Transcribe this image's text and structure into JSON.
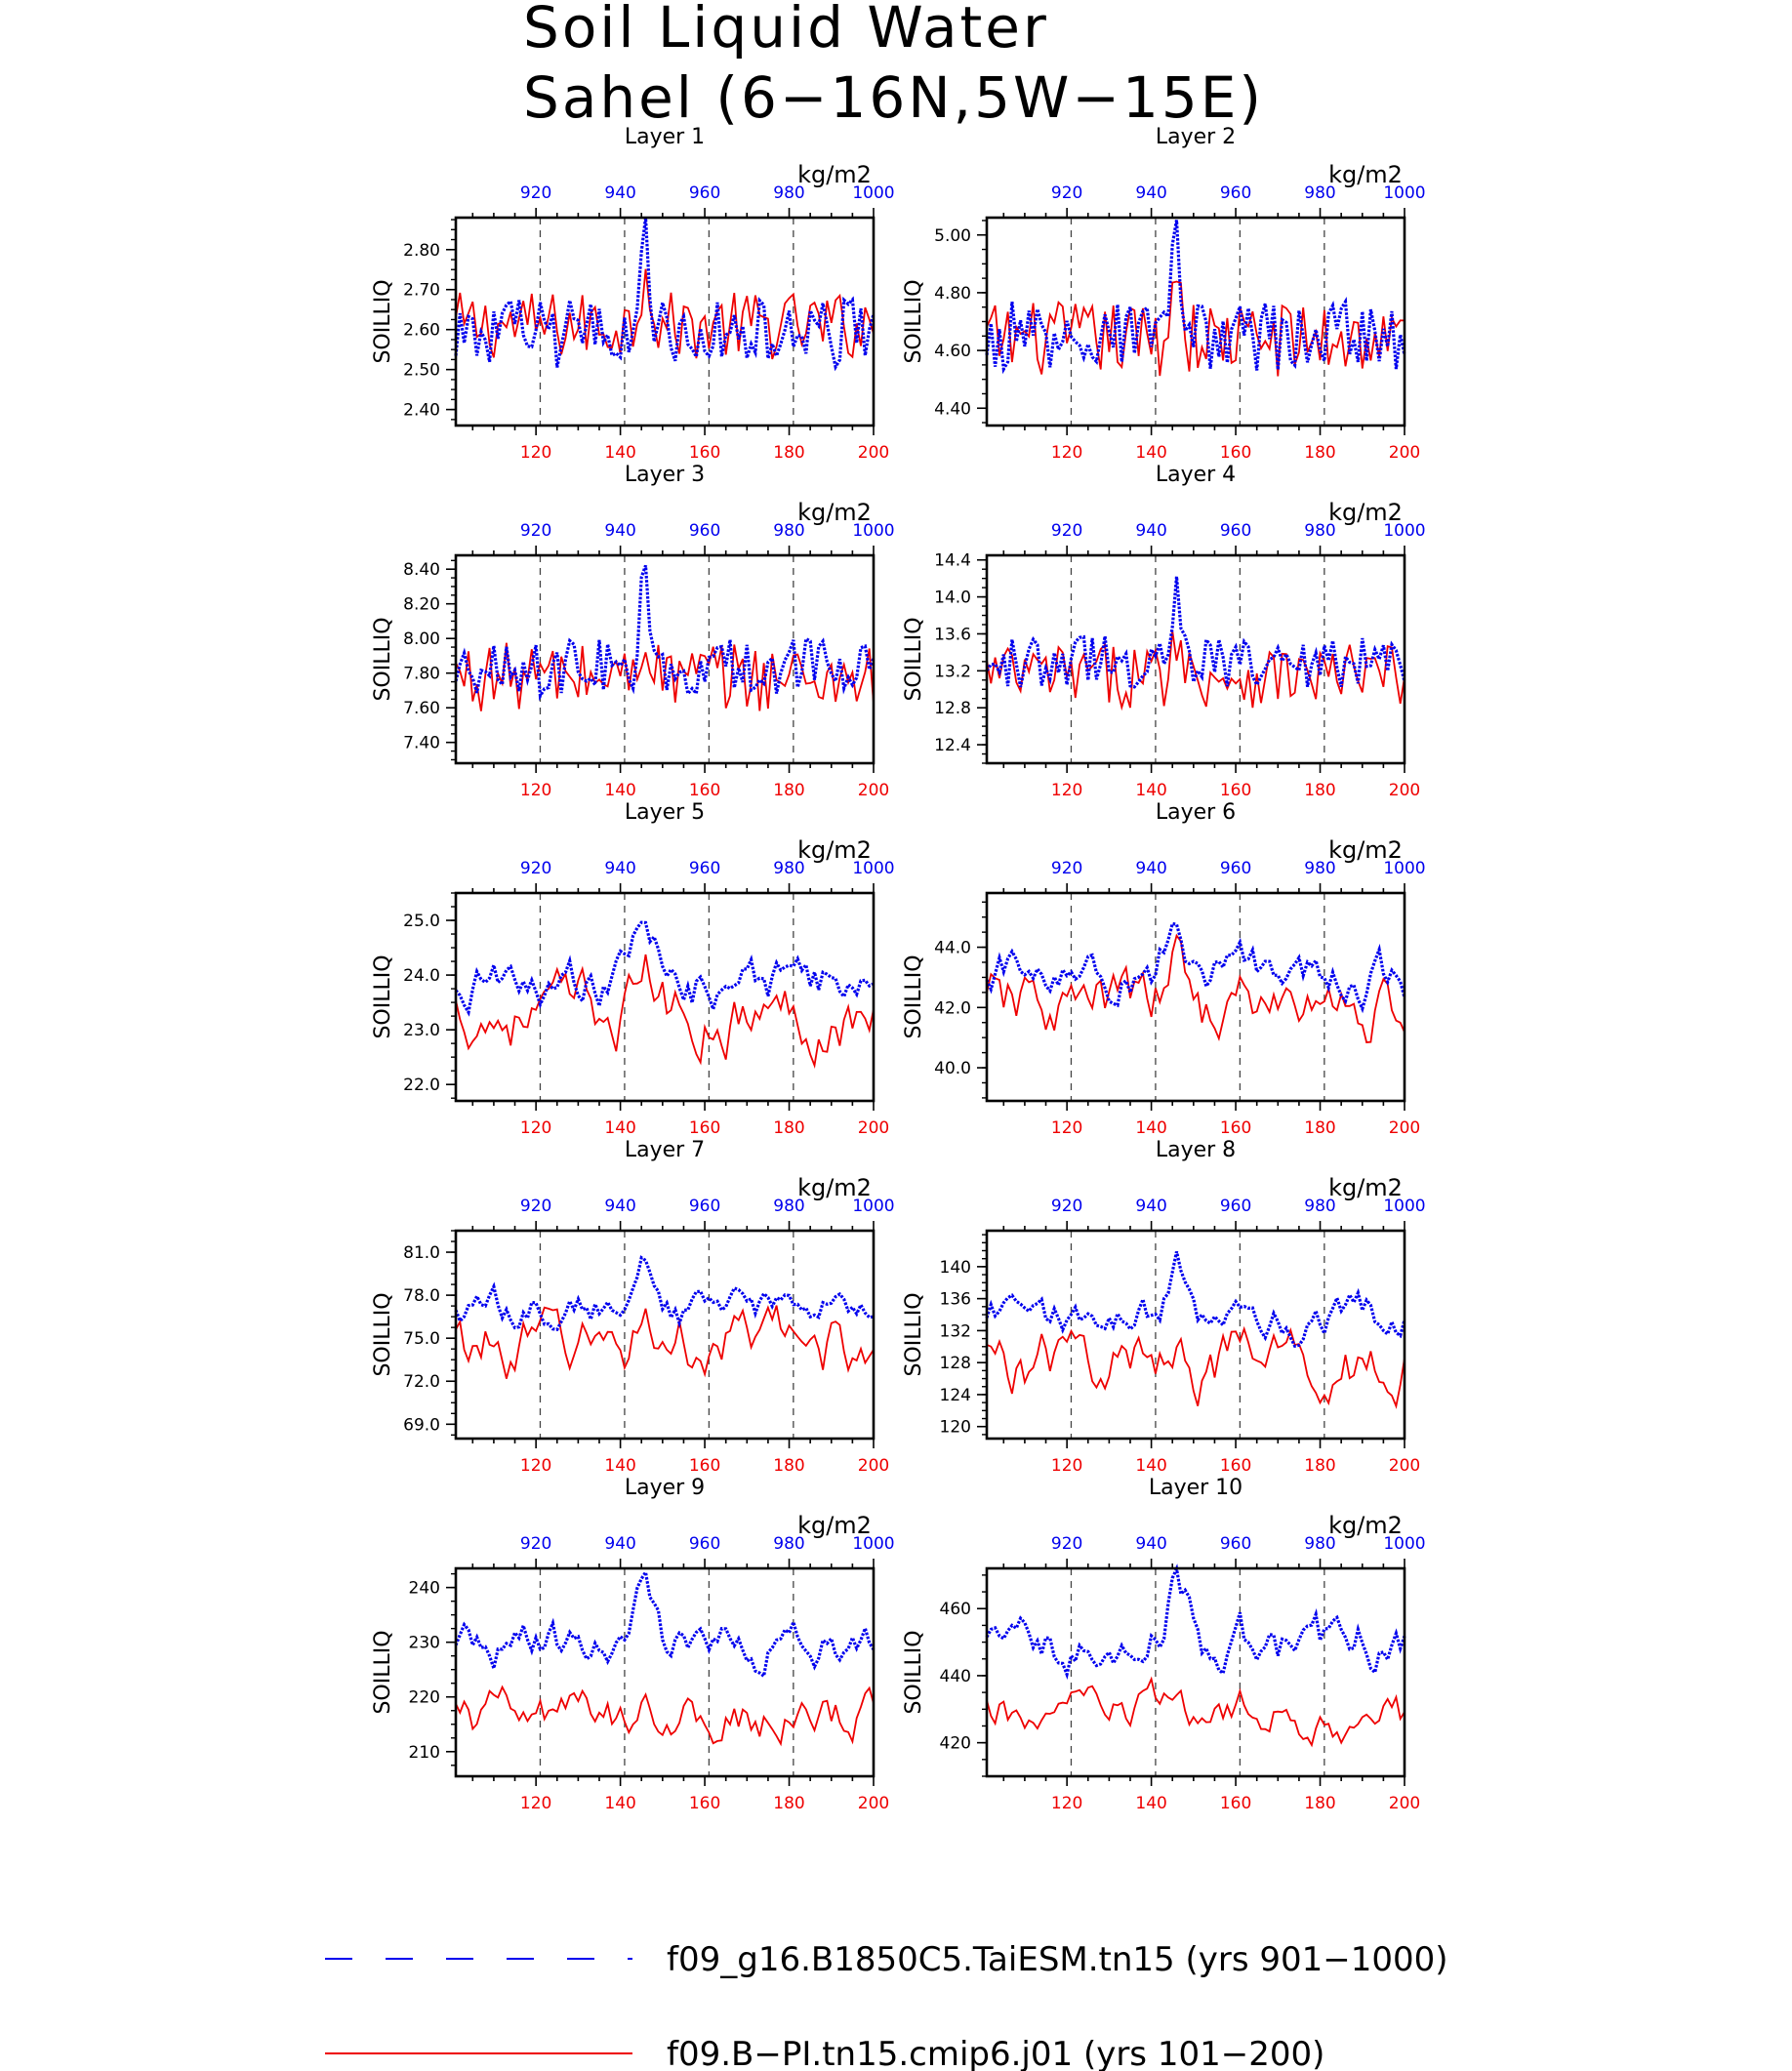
{
  "title": {
    "line1": "Soil Liquid Water",
    "line2": "Sahel (6−16N,5W−15E)"
  },
  "colors": {
    "exp": "#0000ee",
    "ctl": "#ee0000",
    "axis": "#000000"
  },
  "panel_common": {
    "ylabel": "SOILLIQ",
    "units": "kg/m2",
    "bottom_ticks": [
      "120",
      "140",
      "160",
      "180",
      "200"
    ],
    "top_ticks": [
      "920",
      "940",
      "960",
      "980",
      "1000"
    ]
  },
  "legend": [
    {
      "name": "f09_g16.B1850C5.TaiESM.tn15 (yrs 901−1000)",
      "color": "#0000ee",
      "style": "dashed"
    },
    {
      "name": "f09.B−PI.tn15.cmip6.j01 (yrs 101−200)",
      "color": "#ee0000",
      "style": "solid"
    }
  ],
  "chart_data": [
    {
      "type": "line",
      "title": "Layer 1",
      "ylabel": "SOILLIQ",
      "units": "kg/m2",
      "x_bottom": [
        101,
        200
      ],
      "x_top": [
        901,
        1000
      ],
      "ylim": [
        2.36,
        2.88
      ],
      "yticks": [
        2.4,
        2.5,
        2.6,
        2.7,
        2.8
      ],
      "ytick_labels": [
        "2.40",
        "2.50",
        "2.60",
        "2.70",
        "2.80"
      ],
      "series_ctl": {
        "name": "f09.B−PI.tn15.cmip6.j01 (yrs 101−200)",
        "mean": 2.61,
        "spread": 0.085,
        "trend": 0,
        "peak": 0.18
      },
      "series_exp": {
        "name": "f09_g16.B1850C5.TaiESM.tn15 (yrs 901−1000)",
        "mean": 2.59,
        "spread": 0.085,
        "trend": 0,
        "peak": 0.27
      }
    },
    {
      "type": "line",
      "title": "Layer 2",
      "ylabel": "SOILLIQ",
      "units": "kg/m2",
      "x_bottom": [
        101,
        200
      ],
      "x_top": [
        901,
        1000
      ],
      "ylim": [
        4.34,
        5.06
      ],
      "yticks": [
        4.4,
        4.6,
        4.8,
        5.0
      ],
      "ytick_labels": [
        "4.40",
        "4.60",
        "4.80",
        "5.00"
      ],
      "series_ctl": {
        "name": "f09.B−PI.tn15.cmip6.j01 (yrs 101−200)",
        "mean": 4.64,
        "spread": 0.13,
        "trend": 0,
        "peak": 0.28
      },
      "series_exp": {
        "name": "f09_g16.B1850C5.TaiESM.tn15 (yrs 901−1000)",
        "mean": 4.65,
        "spread": 0.12,
        "trend": 0,
        "peak": 0.38
      }
    },
    {
      "type": "line",
      "title": "Layer 3",
      "ylabel": "SOILLIQ",
      "units": "kg/m2",
      "x_bottom": [
        101,
        200
      ],
      "x_top": [
        901,
        1000
      ],
      "ylim": [
        7.28,
        8.48
      ],
      "yticks": [
        7.4,
        7.6,
        7.8,
        8.0,
        8.2,
        8.4
      ],
      "ytick_labels": [
        "7.40",
        "7.60",
        "7.80",
        "8.00",
        "8.20",
        "8.40"
      ],
      "series_ctl": {
        "name": "f09.B−PI.tn15.cmip6.j01 (yrs 101−200)",
        "mean": 7.78,
        "spread": 0.2,
        "trend": 0,
        "peak": 0.3
      },
      "series_exp": {
        "name": "f09_g16.B1850C5.TaiESM.tn15 (yrs 901−1000)",
        "mean": 7.83,
        "spread": 0.17,
        "trend": 0,
        "peak": 0.6
      }
    },
    {
      "type": "line",
      "title": "Layer 4",
      "ylabel": "SOILLIQ",
      "units": "kg/m2",
      "x_bottom": [
        101,
        200
      ],
      "x_top": [
        901,
        1000
      ],
      "ylim": [
        12.2,
        14.45
      ],
      "yticks": [
        12.4,
        12.8,
        13.2,
        13.6,
        14.0,
        14.4
      ],
      "ytick_labels": [
        "12.4",
        "12.8",
        "13.2",
        "13.6",
        "14.0",
        "14.4"
      ],
      "series_ctl": {
        "name": "f09.B−PI.tn15.cmip6.j01 (yrs 101−200)",
        "mean": 13.15,
        "spread": 0.35,
        "trend": 0,
        "peak": 0.5
      },
      "series_exp": {
        "name": "f09_g16.B1850C5.TaiESM.tn15 (yrs 901−1000)",
        "mean": 13.3,
        "spread": 0.28,
        "trend": 0,
        "peak": 1.0
      }
    },
    {
      "type": "line",
      "title": "Layer 5",
      "ylabel": "SOILLIQ",
      "units": "kg/m2",
      "x_bottom": [
        101,
        200
      ],
      "x_top": [
        901,
        1000
      ],
      "ylim": [
        21.7,
        25.5
      ],
      "yticks": [
        22.0,
        23.0,
        24.0,
        25.0
      ],
      "ytick_labels": [
        "22.0",
        "23.0",
        "24.0",
        "25.0"
      ],
      "series_ctl": {
        "name": "f09.B−PI.tn15.cmip6.j01 (yrs 101−200)",
        "mean": 23.3,
        "spread": 0.6,
        "trend": 0,
        "peak": 0.8
      },
      "series_exp": {
        "name": "f09_g16.B1850C5.TaiESM.tn15 (yrs 901−1000)",
        "mean": 23.8,
        "spread": 0.45,
        "trend": 0,
        "peak": 1.4
      }
    },
    {
      "type": "line",
      "title": "Layer 6",
      "ylabel": "SOILLIQ",
      "units": "kg/m2",
      "x_bottom": [
        101,
        200
      ],
      "x_top": [
        901,
        1000
      ],
      "ylim": [
        38.9,
        45.8
      ],
      "yticks": [
        40.0,
        42.0,
        44.0
      ],
      "ytick_labels": [
        "40.0",
        "42.0",
        "44.0"
      ],
      "series_ctl": {
        "name": "f09.B−PI.tn15.cmip6.j01 (yrs 101−200)",
        "mean": 42.0,
        "spread": 1.1,
        "trend": 0,
        "peak": 1.5
      },
      "series_exp": {
        "name": "f09_g16.B1850C5.TaiESM.tn15 (yrs 901−1000)",
        "mean": 43.0,
        "spread": 0.8,
        "trend": 0,
        "peak": 2.6
      }
    },
    {
      "type": "line",
      "title": "Layer 7",
      "ylabel": "SOILLIQ",
      "units": "kg/m2",
      "x_bottom": [
        101,
        200
      ],
      "x_top": [
        901,
        1000
      ],
      "ylim": [
        68.0,
        82.5
      ],
      "yticks": [
        69.0,
        72.0,
        75.0,
        78.0,
        81.0
      ],
      "ytick_labels": [
        "69.0",
        "72.0",
        "75.0",
        "78.0",
        "81.0"
      ],
      "series_ctl": {
        "name": "f09.B−PI.tn15.cmip6.j01 (yrs 101−200)",
        "mean": 74.5,
        "spread": 2.2,
        "trend": 0,
        "peak": 2.0
      },
      "series_exp": {
        "name": "f09_g16.B1850C5.TaiESM.tn15 (yrs 901−1000)",
        "mean": 77.0,
        "spread": 1.3,
        "trend": 0,
        "peak": 5.0
      }
    },
    {
      "type": "line",
      "title": "Layer 8",
      "ylabel": "SOILLIQ",
      "units": "kg/m2",
      "x_bottom": [
        101,
        200
      ],
      "x_top": [
        901,
        1000
      ],
      "ylim": [
        118.5,
        144.5
      ],
      "yticks": [
        120,
        124,
        128,
        132,
        136,
        140
      ],
      "ytick_labels": [
        "120",
        "124",
        "128",
        "132",
        "136",
        "140"
      ],
      "series_ctl": {
        "name": "f09.B−PI.tn15.cmip6.j01 (yrs 101−200)",
        "mean": 128.0,
        "spread": 4.0,
        "trend": 0,
        "peak": 4.0
      },
      "series_exp": {
        "name": "f09_g16.B1850C5.TaiESM.tn15 (yrs 901−1000)",
        "mean": 133.5,
        "spread": 2.5,
        "trend": 0,
        "peak": 8.0
      }
    },
    {
      "type": "line",
      "title": "Layer 9",
      "ylabel": "SOILLIQ",
      "units": "kg/m2",
      "x_bottom": [
        101,
        200
      ],
      "x_top": [
        901,
        1000
      ],
      "ylim": [
        205.5,
        243.5
      ],
      "yticks": [
        210,
        220,
        230,
        240
      ],
      "ytick_labels": [
        "210",
        "220",
        "230",
        "240"
      ],
      "series_ctl": {
        "name": "f09.B−PI.tn15.cmip6.j01 (yrs 101−200)",
        "mean": 216.0,
        "spread": 4.5,
        "trend": 0,
        "peak": 5.0
      },
      "series_exp": {
        "name": "f09_g16.B1850C5.TaiESM.tn15 (yrs 901−1000)",
        "mean": 229.0,
        "spread": 4.0,
        "trend": 0,
        "peak": 9.0
      }
    },
    {
      "type": "line",
      "title": "Layer 10",
      "ylabel": "SOILLIQ",
      "units": "kg/m2",
      "x_bottom": [
        101,
        200
      ],
      "x_top": [
        901,
        1000
      ],
      "ylim": [
        410.0,
        472.0
      ],
      "yticks": [
        420,
        440,
        460
      ],
      "ytick_labels": [
        "420",
        "440",
        "460"
      ],
      "series_ctl": {
        "name": "f09.B−PI.tn15.cmip6.j01 (yrs 101−200)",
        "mean": 428.0,
        "spread": 7.0,
        "trend": 0,
        "peak": 8.0
      },
      "series_exp": {
        "name": "f09_g16.B1850C5.TaiESM.tn15 (yrs 901−1000)",
        "mean": 450.0,
        "spread": 8.0,
        "trend": 0,
        "peak": 18.0
      }
    }
  ]
}
